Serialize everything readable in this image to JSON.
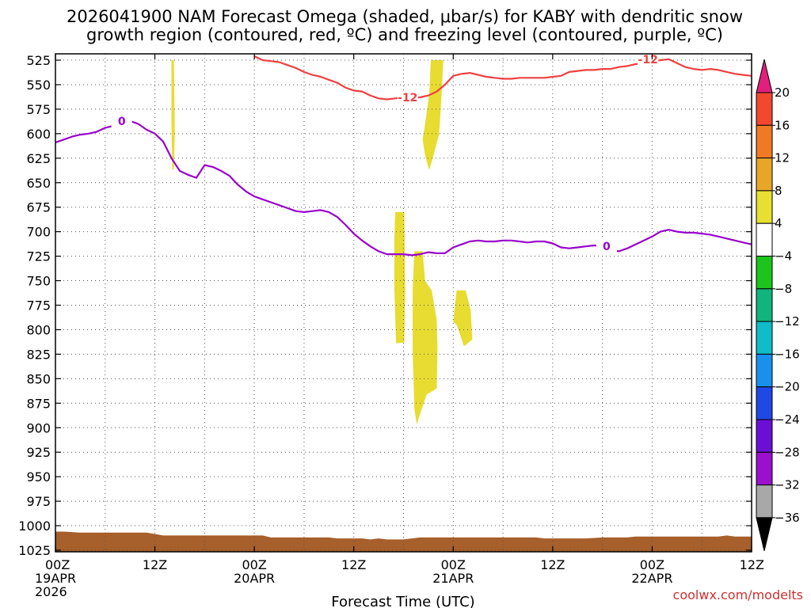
{
  "chart_data": {
    "type": "time-height contour",
    "title_line1": "2026041900 NAM Forecast Omega (shaded, μbar/s) for KABY with dendritic snow",
    "title_line2": "growth region (contoured, red, ºC) and freezing level (contoured, purple, ºC)",
    "xlabel": "Forecast Time (UTC)",
    "credit": "coolwx.com/modelts",
    "x_range_hours": [
      0,
      84
    ],
    "y_range_hpa": [
      525,
      1025
    ],
    "y_ticks": [
      525,
      550,
      575,
      600,
      625,
      650,
      675,
      700,
      725,
      750,
      775,
      800,
      825,
      850,
      875,
      900,
      925,
      950,
      975,
      1000,
      1025
    ],
    "x_ticks": [
      {
        "h": 0,
        "time": "00Z",
        "date": "19APR",
        "year": "2026"
      },
      {
        "h": 12,
        "time": "12Z",
        "date": "",
        "year": ""
      },
      {
        "h": 24,
        "time": "00Z",
        "date": "20APR",
        "year": ""
      },
      {
        "h": 36,
        "time": "12Z",
        "date": "",
        "year": ""
      },
      {
        "h": 48,
        "time": "00Z",
        "date": "21APR",
        "year": ""
      },
      {
        "h": 60,
        "time": "12Z",
        "date": "",
        "year": ""
      },
      {
        "h": 72,
        "time": "00Z",
        "date": "22APR",
        "year": ""
      },
      {
        "h": 84,
        "time": "12Z",
        "date": "",
        "year": ""
      }
    ],
    "colorbar": {
      "labels": [
        "20",
        "16",
        "12",
        "8",
        "4",
        "−4",
        "−8",
        "−12",
        "−16",
        "−20",
        "−24",
        "−28",
        "−32",
        "−36"
      ],
      "colors": [
        "#e0207a",
        "#f24830",
        "#f07a24",
        "#e8a628",
        "#e8e030",
        "#ffffff",
        "#1cc41c",
        "#10b47c",
        "#10bcc8",
        "#1890ee",
        "#2048e4",
        "#6a10d4",
        "#9a10cc",
        "#a8a8a8",
        "#000000"
      ]
    },
    "freezing_level": {
      "label": "0",
      "color": "#9900cc",
      "points": [
        [
          0,
          609
        ],
        [
          1,
          606
        ],
        [
          2,
          603
        ],
        [
          3,
          601
        ],
        [
          4,
          600
        ],
        [
          5,
          598
        ],
        [
          6,
          594
        ],
        [
          7,
          592
        ],
        [
          8,
          589
        ],
        [
          9,
          587
        ],
        [
          10,
          590
        ],
        [
          11,
          596
        ],
        [
          12,
          600
        ],
        [
          13,
          608
        ],
        [
          14,
          625
        ],
        [
          15,
          638
        ],
        [
          16,
          642
        ],
        [
          17,
          645
        ],
        [
          18,
          632
        ],
        [
          19,
          634
        ],
        [
          20,
          638
        ],
        [
          21,
          643
        ],
        [
          22,
          652
        ],
        [
          23,
          659
        ],
        [
          24,
          664
        ],
        [
          25,
          667
        ],
        [
          26,
          670
        ],
        [
          27,
          673
        ],
        [
          28,
          676
        ],
        [
          29,
          679
        ],
        [
          30,
          680
        ],
        [
          31,
          679
        ],
        [
          32,
          678
        ],
        [
          33,
          680
        ],
        [
          34,
          685
        ],
        [
          35,
          693
        ],
        [
          36,
          702
        ],
        [
          37,
          709
        ],
        [
          38,
          715
        ],
        [
          39,
          720
        ],
        [
          40,
          723
        ],
        [
          41,
          723
        ],
        [
          42,
          723
        ],
        [
          43,
          724
        ],
        [
          44,
          723
        ],
        [
          45,
          721
        ],
        [
          46,
          722
        ],
        [
          47,
          722
        ],
        [
          48,
          716
        ],
        [
          49,
          713
        ],
        [
          50,
          710
        ],
        [
          51,
          709
        ],
        [
          52,
          710
        ],
        [
          53,
          710
        ],
        [
          54,
          709
        ],
        [
          55,
          709
        ],
        [
          56,
          710
        ],
        [
          57,
          711
        ],
        [
          58,
          710
        ],
        [
          59,
          710
        ],
        [
          60,
          712
        ],
        [
          61,
          716
        ],
        [
          62,
          717
        ],
        [
          63,
          716
        ],
        [
          64,
          715
        ],
        [
          65,
          714
        ],
        [
          66,
          715
        ],
        [
          67,
          719
        ],
        [
          68,
          720
        ],
        [
          69,
          717
        ],
        [
          70,
          713
        ],
        [
          71,
          709
        ],
        [
          72,
          705
        ],
        [
          73,
          700
        ],
        [
          74,
          698
        ],
        [
          75,
          700
        ],
        [
          76,
          701
        ],
        [
          77,
          701
        ],
        [
          78,
          702
        ],
        [
          79,
          703
        ],
        [
          80,
          705
        ],
        [
          81,
          707
        ],
        [
          82,
          709
        ],
        [
          83,
          711
        ],
        [
          84,
          713
        ]
      ],
      "labels_at": [
        [
          8,
          587
        ],
        [
          66.5,
          715
        ]
      ]
    },
    "dgz_minus12": {
      "label": "-12",
      "color": "#f04040",
      "points": [
        [
          24,
          521
        ],
        [
          25,
          525
        ],
        [
          26,
          526
        ],
        [
          27,
          527
        ],
        [
          28,
          530
        ],
        [
          29,
          533
        ],
        [
          30,
          537
        ],
        [
          31,
          540
        ],
        [
          32,
          542
        ],
        [
          33,
          545
        ],
        [
          34,
          548
        ],
        [
          35,
          553
        ],
        [
          36,
          556
        ],
        [
          37,
          557
        ],
        [
          38,
          561
        ],
        [
          39,
          564
        ],
        [
          40,
          565
        ],
        [
          41,
          564
        ],
        [
          42,
          563
        ],
        [
          43,
          563
        ],
        [
          44,
          563
        ],
        [
          45,
          561
        ],
        [
          46,
          557
        ],
        [
          47,
          550
        ],
        [
          48,
          541
        ],
        [
          49,
          539
        ],
        [
          50,
          538
        ],
        [
          51,
          540
        ],
        [
          52,
          542
        ],
        [
          53,
          543
        ],
        [
          54,
          544
        ],
        [
          55,
          544
        ],
        [
          56,
          543
        ],
        [
          57,
          543
        ],
        [
          58,
          543
        ],
        [
          59,
          543
        ],
        [
          60,
          542
        ],
        [
          61,
          541
        ],
        [
          62,
          537
        ],
        [
          63,
          536
        ],
        [
          64,
          535
        ],
        [
          65,
          535
        ],
        [
          66,
          534
        ],
        [
          67,
          534
        ],
        [
          68,
          532
        ],
        [
          69,
          531
        ],
        [
          70,
          529
        ],
        [
          71,
          528
        ],
        [
          72,
          526
        ],
        [
          73,
          525
        ],
        [
          74,
          524
        ],
        [
          75,
          528
        ],
        [
          76,
          532
        ],
        [
          77,
          534
        ],
        [
          78,
          535
        ],
        [
          79,
          534
        ],
        [
          80,
          535
        ],
        [
          81,
          537
        ],
        [
          82,
          539
        ],
        [
          83,
          540
        ],
        [
          84,
          541
        ]
      ],
      "labels_at": [
        [
          42.5,
          563
        ],
        [
          71.5,
          524
        ]
      ]
    },
    "omega_fill_color": "#e8dc30",
    "omega_4_contours": [
      [
        [
          14.0,
          525
        ],
        [
          14.3,
          525
        ],
        [
          14.4,
          600
        ],
        [
          14.3,
          636
        ],
        [
          14.1,
          637
        ],
        [
          14.0,
          590
        ]
      ],
      [
        [
          45.3,
          525
        ],
        [
          46.8,
          525
        ],
        [
          46.6,
          560
        ],
        [
          46.3,
          600
        ],
        [
          45.5,
          626
        ],
        [
          45.1,
          637
        ],
        [
          44.6,
          622
        ],
        [
          44.3,
          606
        ],
        [
          44.6,
          590
        ],
        [
          45.1,
          560
        ]
      ],
      [
        [
          41.0,
          680
        ],
        [
          42.1,
          680
        ],
        [
          42.2,
          760
        ],
        [
          42.1,
          813
        ],
        [
          41.1,
          814
        ],
        [
          40.9,
          760
        ],
        [
          40.9,
          705
        ]
      ],
      [
        [
          43.3,
          720
        ],
        [
          44.3,
          720
        ],
        [
          44.6,
          750
        ],
        [
          45.4,
          760
        ],
        [
          46.0,
          790
        ],
        [
          46.1,
          820
        ],
        [
          46.0,
          860
        ],
        [
          44.8,
          866
        ],
        [
          44.0,
          886
        ],
        [
          43.6,
          897
        ],
        [
          43.3,
          880
        ],
        [
          43.1,
          820
        ],
        [
          43.1,
          760
        ]
      ],
      [
        [
          48.4,
          760
        ],
        [
          49.5,
          760
        ],
        [
          50.1,
          780
        ],
        [
          50.3,
          810
        ],
        [
          49.3,
          817
        ],
        [
          48.4,
          795
        ],
        [
          48.0,
          792
        ]
      ]
    ],
    "terrain_color": "#a75f2b",
    "surface_pressure": [
      [
        0,
        1006
      ],
      [
        1,
        1006
      ],
      [
        3,
        1007
      ],
      [
        8,
        1007
      ],
      [
        11,
        1007
      ],
      [
        13,
        1010
      ],
      [
        18,
        1010
      ],
      [
        25,
        1010
      ],
      [
        26,
        1012
      ],
      [
        33,
        1012
      ],
      [
        34,
        1013
      ],
      [
        37,
        1013
      ],
      [
        38,
        1014
      ],
      [
        39,
        1013
      ],
      [
        40,
        1014
      ],
      [
        42,
        1014
      ],
      [
        43,
        1013
      ],
      [
        44,
        1012
      ],
      [
        50,
        1012
      ],
      [
        58,
        1012
      ],
      [
        59,
        1013
      ],
      [
        64,
        1013
      ],
      [
        66,
        1012
      ],
      [
        69,
        1012
      ],
      [
        70,
        1011
      ],
      [
        80,
        1011
      ],
      [
        81,
        1010
      ],
      [
        82,
        1011
      ],
      [
        84,
        1011
      ]
    ]
  }
}
